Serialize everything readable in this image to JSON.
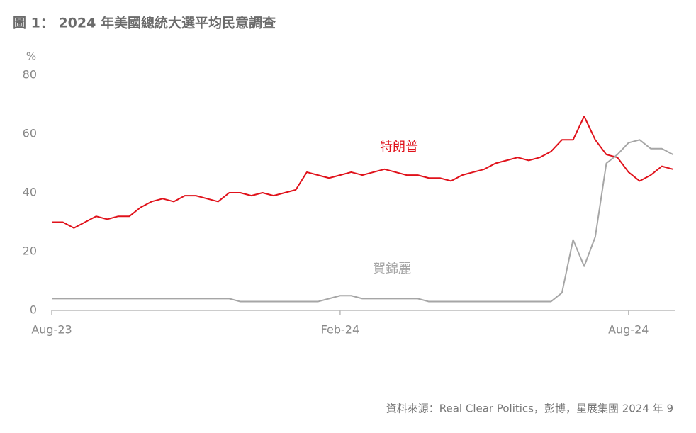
{
  "chart_data": {
    "type": "line",
    "title": "圖 1： 2024 年美國總統大選平均民意調查",
    "y_unit": "%",
    "source": "資料來源：Real Clear Politics，彭博，星展集團  2024 年 9",
    "categories": [
      "Aug-23",
      null,
      null,
      null,
      null,
      null,
      null,
      null,
      null,
      null,
      null,
      null,
      null,
      null,
      null,
      null,
      null,
      null,
      null,
      null,
      null,
      null,
      null,
      null,
      null,
      null,
      "Feb-24",
      null,
      null,
      null,
      null,
      null,
      null,
      null,
      null,
      null,
      null,
      null,
      null,
      null,
      null,
      null,
      null,
      null,
      null,
      null,
      null,
      null,
      null,
      null,
      null,
      null,
      "Aug-24",
      null,
      null,
      null,
      null
    ],
    "series": [
      {
        "name": "特朗普",
        "color": "#e0121b",
        "values": [
          30,
          30,
          28,
          30,
          32,
          31,
          32,
          32,
          35,
          37,
          38,
          37,
          39,
          39,
          38,
          37,
          40,
          40,
          39,
          40,
          39,
          40,
          41,
          47,
          46,
          45,
          46,
          47,
          46,
          47,
          48,
          47,
          46,
          46,
          45,
          45,
          44,
          46,
          47,
          48,
          50,
          51,
          52,
          51,
          52,
          54,
          58,
          58,
          66,
          58,
          53,
          52,
          47,
          44,
          46,
          49,
          48
        ]
      },
      {
        "name": "賀錦麗",
        "color": "#a6a6a6",
        "values": [
          4,
          4,
          4,
          4,
          4,
          4,
          4,
          4,
          4,
          4,
          4,
          4,
          4,
          4,
          4,
          4,
          4,
          3,
          3,
          3,
          3,
          3,
          3,
          3,
          3,
          4,
          5,
          5,
          4,
          4,
          4,
          4,
          4,
          4,
          3,
          3,
          3,
          3,
          3,
          3,
          3,
          3,
          3,
          3,
          3,
          3,
          6,
          24,
          15,
          25,
          50,
          53,
          57,
          58,
          55,
          55,
          53
        ]
      }
    ],
    "ylim": [
      0,
      80
    ],
    "yticks": [
      0,
      20,
      40,
      60,
      80
    ],
    "grid": false
  }
}
